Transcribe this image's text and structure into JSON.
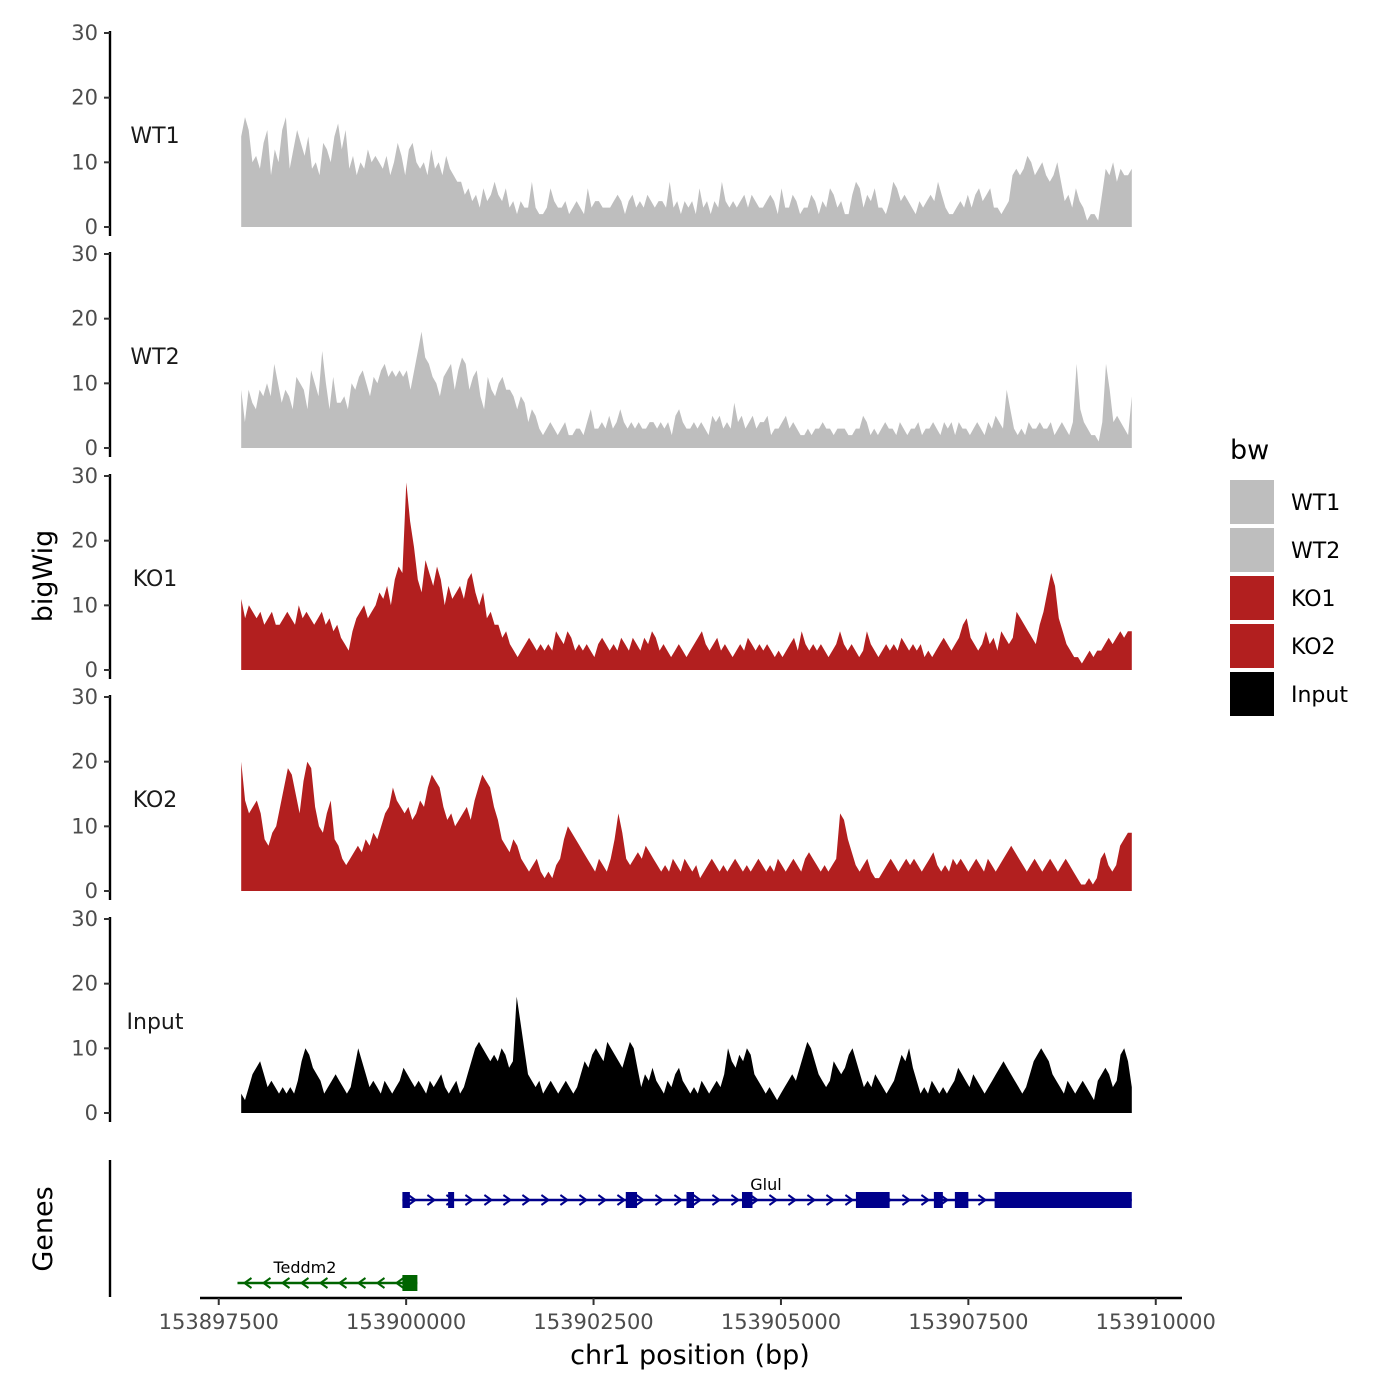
{
  "chart_data": {
    "type": "area",
    "title": "",
    "ylabel": "bigWig",
    "xlabel": "chr1 position (bp)",
    "genes_label": "Genes",
    "ylim": [
      0,
      30
    ],
    "yticks": [
      0,
      10,
      20,
      30
    ],
    "xlim": [
      153897250,
      153910350
    ],
    "xticks": [
      153897500,
      153900000,
      153902500,
      153905000,
      153907500,
      153910000
    ],
    "xtick_labels": [
      "153897500",
      "153900000",
      "153902500",
      "153905000",
      "153907500",
      "153910000"
    ],
    "x_start": 153897800,
    "x_end": 153909680,
    "legend": {
      "title": "bw",
      "entries": [
        {
          "label": "WT1",
          "color": "#bebebe"
        },
        {
          "label": "WT2",
          "color": "#bebebe"
        },
        {
          "label": "KO1",
          "color": "#b21f1f"
        },
        {
          "label": "KO2",
          "color": "#b21f1f"
        },
        {
          "label": "Input",
          "color": "#000000"
        }
      ]
    },
    "series": [
      {
        "name": "WT1",
        "color": "#bebebe",
        "values": [
          14,
          17,
          15,
          10,
          11,
          9,
          13,
          15,
          8,
          12,
          10,
          15,
          17,
          9,
          12,
          15,
          13,
          11,
          14,
          9,
          10,
          8,
          13,
          12,
          10,
          14,
          16,
          12,
          15,
          9,
          11,
          8,
          10,
          9,
          12,
          10,
          11,
          10,
          9,
          11,
          8,
          10,
          13,
          11,
          8,
          12,
          13,
          10,
          9,
          10,
          8,
          12,
          9,
          10,
          8,
          11,
          9,
          8,
          7,
          7,
          5,
          6,
          4,
          5,
          3,
          6,
          4,
          5,
          7,
          5,
          4,
          6,
          3,
          4,
          2,
          4,
          3,
          3,
          7,
          3,
          2,
          2,
          3,
          6,
          4,
          3,
          3,
          4,
          2,
          3,
          4,
          3,
          2,
          6,
          3,
          4,
          4,
          3,
          3,
          3,
          4,
          5,
          4,
          2,
          4,
          5,
          3,
          4,
          3,
          5,
          4,
          3,
          4,
          4,
          3,
          7,
          3,
          4,
          2,
          4,
          3,
          4,
          2,
          6,
          3,
          4,
          2,
          4,
          3,
          7,
          4,
          3,
          4,
          3,
          4,
          5,
          3,
          5,
          4,
          3,
          3,
          4,
          5,
          4,
          2,
          6,
          3,
          3,
          5,
          4,
          2,
          3,
          3,
          5,
          4,
          2,
          4,
          3,
          6,
          5,
          3,
          4,
          2,
          2,
          5,
          7,
          6,
          3,
          5,
          4,
          6,
          3,
          3,
          2,
          4,
          7,
          6,
          4,
          5,
          4,
          3,
          2,
          4,
          3,
          4,
          5,
          4,
          7,
          5,
          3,
          2,
          2,
          3,
          4,
          3,
          5,
          3,
          5,
          6,
          4,
          5,
          6,
          3,
          3,
          2,
          3,
          4,
          8,
          9,
          8,
          9,
          11,
          10,
          8,
          9,
          10,
          8,
          7,
          8,
          10,
          7,
          4,
          5,
          3,
          6,
          4,
          3,
          1,
          2,
          2,
          1,
          5,
          9,
          8,
          10,
          7,
          9,
          8,
          8,
          9
        ]
      },
      {
        "name": "WT2",
        "color": "#bebebe",
        "values": [
          9,
          4,
          9,
          7,
          6,
          9,
          8,
          10,
          8,
          13,
          10,
          7,
          9,
          8,
          6,
          11,
          10,
          9,
          6,
          12,
          10,
          8,
          15,
          10,
          6,
          11,
          7,
          7,
          8,
          6,
          10,
          9,
          11,
          12,
          10,
          8,
          11,
          10,
          12,
          13,
          11,
          12,
          11,
          12,
          11,
          12,
          9,
          12,
          15,
          18,
          14,
          13,
          11,
          10,
          8,
          11,
          12,
          13,
          9,
          12,
          14,
          13,
          9,
          11,
          12,
          8,
          6,
          11,
          9,
          8,
          10,
          11,
          9,
          9,
          8,
          6,
          8,
          7,
          4,
          6,
          5,
          3,
          2,
          3,
          4,
          3,
          2,
          3,
          4,
          2,
          2,
          3,
          3,
          2,
          4,
          6,
          3,
          3,
          4,
          3,
          5,
          3,
          4,
          6,
          4,
          3,
          4,
          3,
          4,
          3,
          3,
          4,
          4,
          3,
          4,
          3,
          4,
          2,
          5,
          6,
          4,
          3,
          3,
          4,
          3,
          4,
          3,
          2,
          5,
          4,
          5,
          3,
          4,
          3,
          7,
          4,
          5,
          3,
          4,
          5,
          3,
          4,
          4,
          5,
          2,
          3,
          3,
          4,
          5,
          3,
          4,
          3,
          2,
          2,
          3,
          2,
          3,
          3,
          4,
          3,
          3,
          2,
          3,
          3,
          3,
          2,
          2,
          3,
          3,
          5,
          4,
          2,
          3,
          2,
          3,
          4,
          3,
          3,
          2,
          4,
          3,
          2,
          3,
          3,
          4,
          2,
          3,
          3,
          4,
          3,
          2,
          4,
          3,
          4,
          2,
          4,
          3,
          3,
          2,
          3,
          4,
          3,
          2,
          4,
          3,
          5,
          4,
          3,
          9,
          6,
          3,
          2,
          3,
          2,
          4,
          3,
          3,
          4,
          3,
          3,
          4,
          2,
          3,
          4,
          3,
          2,
          4,
          13,
          6,
          4,
          3,
          2,
          2,
          1,
          4,
          13,
          9,
          4,
          5,
          4,
          3,
          2,
          8
        ]
      },
      {
        "name": "KO1",
        "color": "#b21f1f",
        "values": [
          11,
          8,
          10,
          9,
          8,
          9,
          7,
          8,
          9,
          7,
          7,
          8,
          9,
          8,
          7,
          10,
          8,
          9,
          8,
          7,
          8,
          9,
          7,
          8,
          6,
          7,
          5,
          4,
          3,
          6,
          8,
          9,
          10,
          8,
          9,
          10,
          12,
          11,
          13,
          10,
          14,
          16,
          15,
          29,
          23,
          19,
          14,
          12,
          17,
          15,
          13,
          16,
          14,
          10,
          13,
          11,
          12,
          13,
          11,
          14,
          15,
          12,
          10,
          12,
          8,
          9,
          7,
          7,
          5,
          6,
          4,
          3,
          2,
          3,
          4,
          5,
          4,
          3,
          4,
          3,
          4,
          3,
          6,
          5,
          4,
          6,
          5,
          3,
          4,
          3,
          4,
          3,
          2,
          4,
          5,
          4,
          3,
          4,
          3,
          5,
          4,
          3,
          5,
          4,
          3,
          5,
          4,
          6,
          5,
          3,
          4,
          3,
          2,
          3,
          4,
          3,
          2,
          3,
          4,
          5,
          6,
          4,
          3,
          4,
          5,
          3,
          4,
          3,
          2,
          3,
          4,
          3,
          5,
          4,
          3,
          4,
          3,
          4,
          3,
          2,
          3,
          2,
          3,
          4,
          5,
          3,
          6,
          4,
          3,
          4,
          3,
          4,
          3,
          2,
          3,
          4,
          6,
          4,
          3,
          4,
          3,
          2,
          3,
          6,
          4,
          3,
          2,
          3,
          4,
          3,
          4,
          3,
          5,
          4,
          3,
          4,
          3,
          4,
          2,
          3,
          2,
          3,
          4,
          5,
          4,
          3,
          4,
          5,
          7,
          8,
          5,
          4,
          3,
          4,
          6,
          4,
          5,
          3,
          6,
          5,
          4,
          5,
          9,
          8,
          7,
          6,
          5,
          4,
          7,
          9,
          12,
          15,
          13,
          8,
          6,
          4,
          3,
          2,
          2,
          1,
          2,
          3,
          2,
          3,
          3,
          4,
          5,
          4,
          5,
          6,
          5,
          6,
          6
        ]
      },
      {
        "name": "KO2",
        "color": "#b21f1f",
        "values": [
          20,
          14,
          12,
          13,
          14,
          12,
          8,
          7,
          9,
          10,
          13,
          16,
          19,
          18,
          15,
          12,
          17,
          20,
          19,
          13,
          10,
          9,
          12,
          14,
          8,
          7,
          5,
          4,
          5,
          6,
          7,
          6,
          8,
          7,
          9,
          8,
          10,
          12,
          13,
          16,
          14,
          13,
          12,
          13,
          11,
          12,
          14,
          13,
          16,
          18,
          17,
          16,
          13,
          11,
          12,
          10,
          11,
          12,
          13,
          11,
          14,
          16,
          18,
          17,
          16,
          13,
          11,
          8,
          7,
          6,
          8,
          7,
          5,
          4,
          3,
          4,
          5,
          3,
          2,
          3,
          2,
          4,
          5,
          8,
          10,
          9,
          8,
          7,
          6,
          5,
          4,
          3,
          5,
          4,
          3,
          5,
          8,
          12,
          9,
          5,
          4,
          5,
          6,
          5,
          7,
          6,
          5,
          4,
          3,
          4,
          3,
          5,
          4,
          3,
          5,
          4,
          3,
          4,
          2,
          3,
          4,
          5,
          4,
          3,
          4,
          3,
          4,
          5,
          4,
          3,
          4,
          3,
          4,
          5,
          4,
          3,
          4,
          3,
          5,
          4,
          3,
          4,
          5,
          4,
          3,
          5,
          6,
          5,
          4,
          3,
          4,
          3,
          4,
          5,
          12,
          11,
          8,
          6,
          4,
          3,
          4,
          5,
          3,
          2,
          2,
          3,
          4,
          5,
          4,
          3,
          4,
          5,
          4,
          5,
          4,
          3,
          4,
          5,
          6,
          4,
          3,
          4,
          3,
          5,
          4,
          5,
          4,
          3,
          4,
          5,
          4,
          3,
          5,
          4,
          3,
          4,
          5,
          6,
          7,
          6,
          5,
          4,
          3,
          4,
          5,
          4,
          3,
          4,
          5,
          4,
          3,
          4,
          5,
          4,
          3,
          2,
          1,
          1,
          2,
          1,
          2,
          5,
          6,
          4,
          3,
          4,
          7,
          8,
          9,
          9
        ]
      },
      {
        "name": "Input",
        "color": "#000000",
        "values": [
          3,
          2,
          4,
          6,
          7,
          8,
          6,
          4,
          5,
          4,
          3,
          4,
          3,
          4,
          3,
          5,
          8,
          10,
          9,
          7,
          6,
          5,
          3,
          4,
          5,
          6,
          5,
          4,
          3,
          4,
          7,
          10,
          8,
          6,
          4,
          5,
          4,
          3,
          5,
          4,
          3,
          4,
          5,
          7,
          6,
          5,
          4,
          5,
          4,
          3,
          5,
          4,
          5,
          6,
          4,
          3,
          4,
          5,
          3,
          4,
          6,
          8,
          10,
          11,
          10,
          9,
          8,
          9,
          8,
          10,
          9,
          7,
          8,
          18,
          14,
          10,
          6,
          5,
          4,
          5,
          3,
          4,
          5,
          4,
          3,
          4,
          5,
          4,
          3,
          4,
          6,
          8,
          7,
          9,
          10,
          9,
          8,
          11,
          10,
          9,
          8,
          7,
          9,
          11,
          10,
          7,
          4,
          6,
          5,
          7,
          5,
          4,
          3,
          5,
          4,
          6,
          7,
          5,
          4,
          3,
          4,
          3,
          5,
          4,
          3,
          4,
          5,
          4,
          6,
          10,
          8,
          7,
          9,
          8,
          10,
          9,
          6,
          5,
          4,
          3,
          4,
          3,
          2,
          3,
          4,
          5,
          6,
          5,
          7,
          9,
          11,
          10,
          8,
          6,
          5,
          4,
          5,
          8,
          7,
          6,
          7,
          9,
          10,
          8,
          6,
          4,
          5,
          4,
          6,
          5,
          4,
          3,
          4,
          5,
          7,
          9,
          8,
          10,
          7,
          5,
          3,
          4,
          3,
          5,
          4,
          3,
          4,
          3,
          4,
          5,
          7,
          6,
          5,
          4,
          6,
          5,
          4,
          3,
          4,
          5,
          6,
          7,
          8,
          7,
          6,
          5,
          4,
          3,
          4,
          6,
          8,
          9,
          10,
          9,
          8,
          6,
          5,
          4,
          3,
          5,
          4,
          3,
          4,
          5,
          4,
          3,
          2,
          5,
          6,
          7,
          6,
          4,
          5,
          9,
          10,
          8,
          4
        ]
      }
    ],
    "genes": [
      {
        "name": "Glul",
        "color": "#00008b",
        "strand": "+",
        "start": 153899950,
        "end": 153909680,
        "label_x": 153904800,
        "exons": [
          [
            153899950,
            153900050
          ],
          [
            153900560,
            153900640
          ],
          [
            153902930,
            153903080
          ],
          [
            153903740,
            153903840
          ],
          [
            153904480,
            153904620
          ],
          [
            153906000,
            153906450
          ],
          [
            153907040,
            153907160
          ],
          [
            153907320,
            153907500
          ],
          [
            153907850,
            153909680
          ]
        ]
      },
      {
        "name": "Teddm2",
        "color": "#006400",
        "strand": "-",
        "start": 153897750,
        "end": 153900150,
        "label_x": 153898650,
        "exons": [
          [
            153899950,
            153900150
          ]
        ]
      }
    ]
  }
}
